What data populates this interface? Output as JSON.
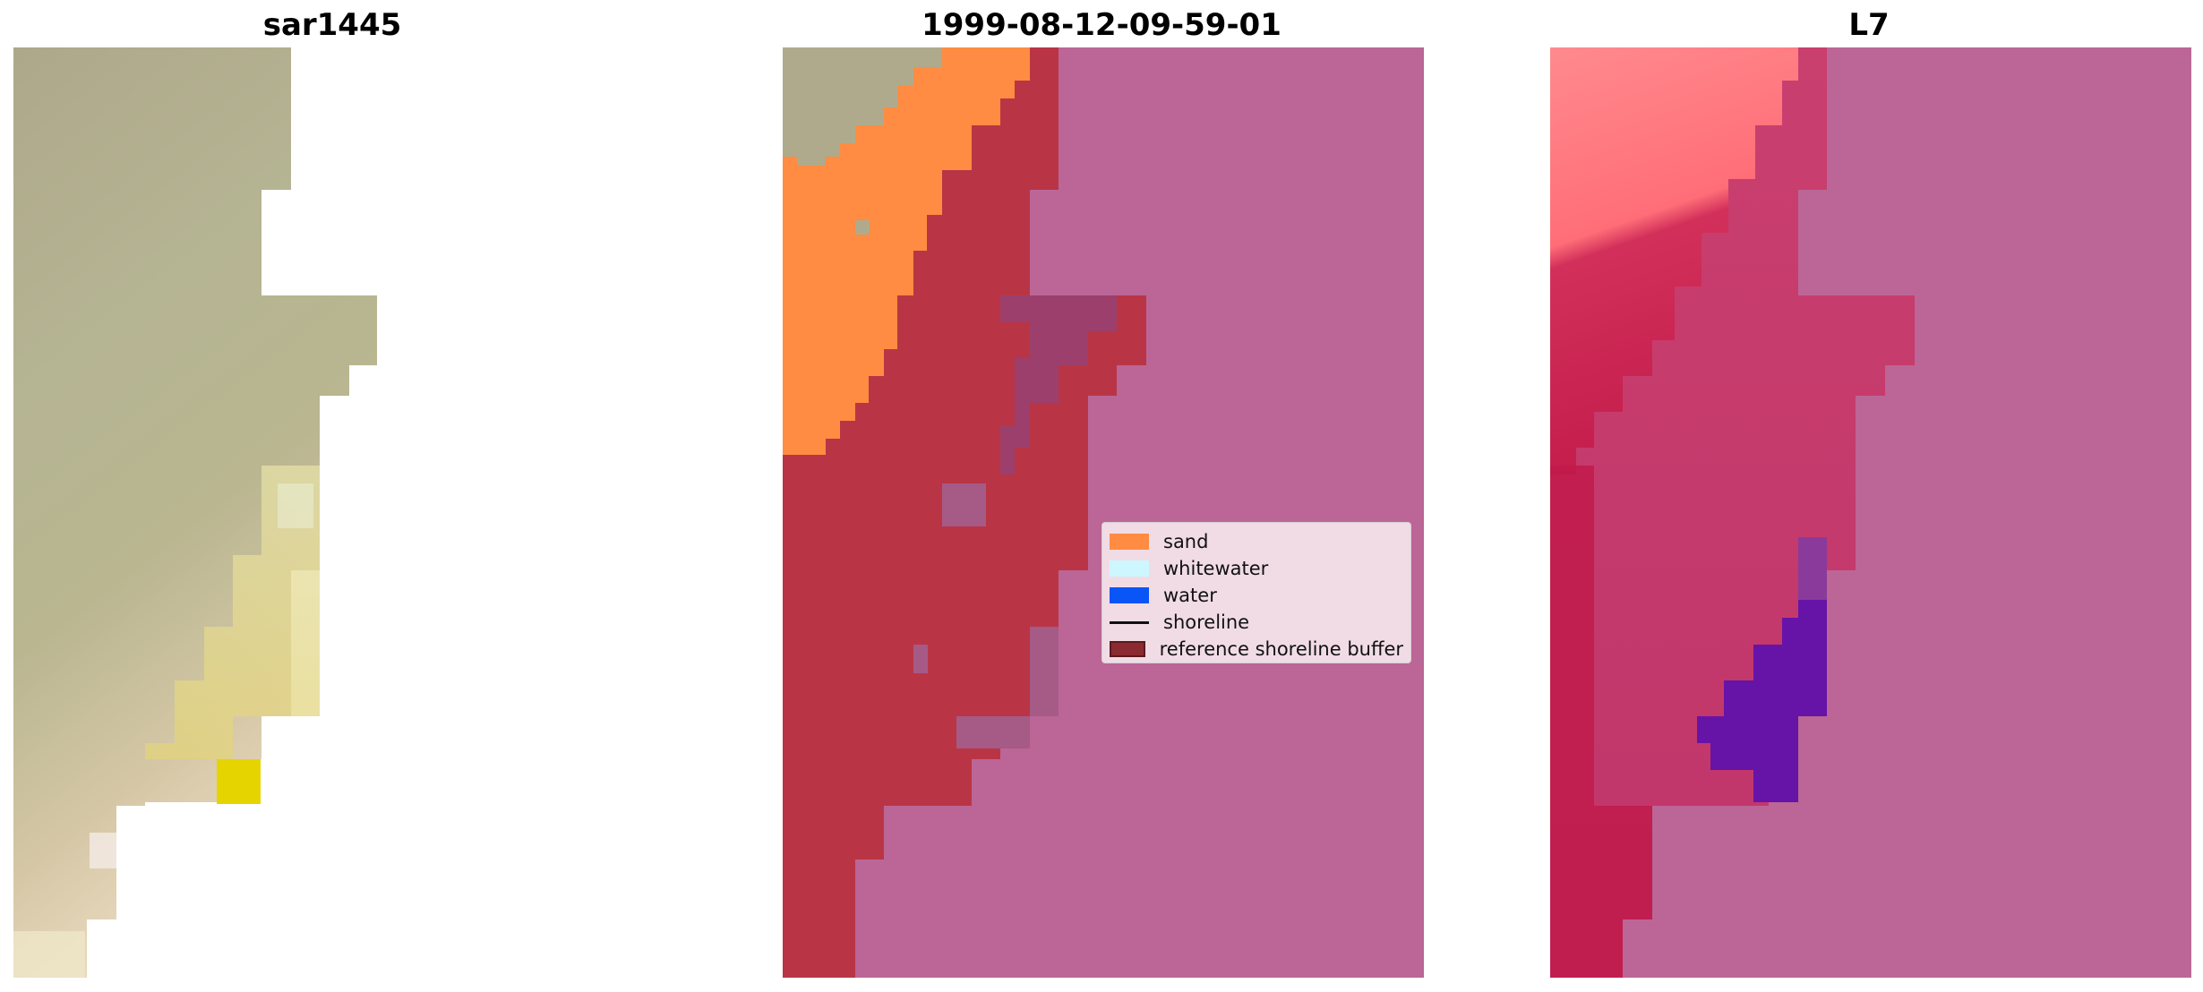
{
  "panels": [
    {
      "title": "sar1445"
    },
    {
      "title": "1999-08-12-09-59-01"
    },
    {
      "title": "L7"
    }
  ],
  "legend": {
    "items": [
      {
        "label": "sand",
        "kind": "patch",
        "color": "#ff8c42"
      },
      {
        "label": "whitewater",
        "kind": "patch",
        "color": "#ccf7ff"
      },
      {
        "label": "water",
        "kind": "patch",
        "color": "#0a55f5"
      },
      {
        "label": "shoreline",
        "kind": "line",
        "color": "#111111"
      },
      {
        "label": "reference shoreline buffer",
        "kind": "patch",
        "color": "#8b2a30"
      }
    ]
  },
  "colors": {
    "background": "#ffffff",
    "rgb_sand_tone": "#b0aa8c",
    "rgb_yellow_patch": "#e6d400",
    "class_sand": "#ff8c42",
    "class_buffer_dark_red": "#b93545",
    "class_sea_pink": "#bb6696",
    "class_purple_patch": "#9c3f6c",
    "l7_light_red": "#ff8a8e",
    "l7_crimson": "#c82856",
    "l7_violet": "#6613a8"
  }
}
